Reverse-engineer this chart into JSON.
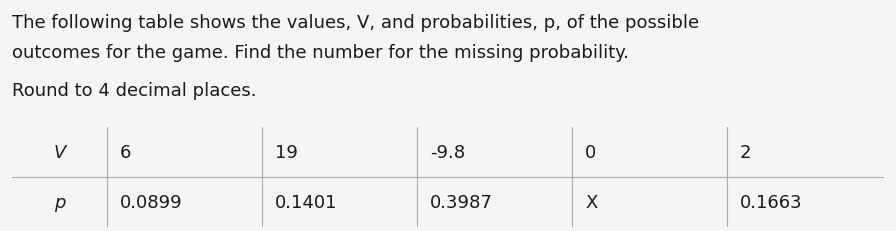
{
  "title_line1": "The following table shows the values, V, and probabilities, p, of the possible",
  "title_line2": "outcomes for the game. Find the number for the missing probability.",
  "subtitle": "Round to 4 decimal places.",
  "col_headers": [
    "V",
    "6",
    "19",
    "-9.8",
    "0",
    "2"
  ],
  "row_p_label": "p",
  "row_p_values": [
    "0.0899",
    "0.1401",
    "0.3987",
    "X",
    "0.1663"
  ],
  "bg_color": "#f5f5f5",
  "table_bg": "#f0f0f0",
  "table_line_color": "#aaaaaa",
  "text_color": "#1a1a1a",
  "title_fontsize": 13.0,
  "subtitle_fontsize": 13.0,
  "table_fontsize": 13.0,
  "fig_width": 8.96,
  "fig_height": 2.32,
  "dpi": 100
}
